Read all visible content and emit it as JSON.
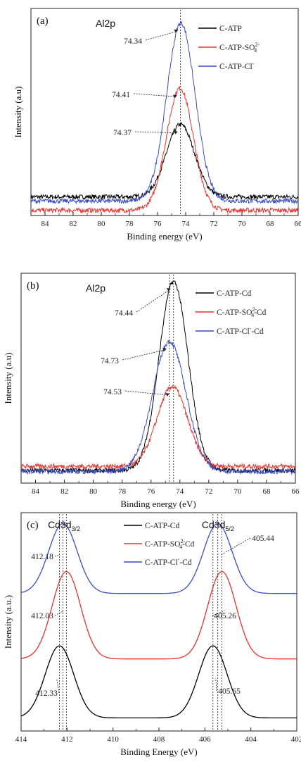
{
  "chart_data": [
    {
      "panel": "(a)",
      "type": "line",
      "title": "Al2p",
      "xlabel": "Binding energy (eV)",
      "ylabel": "Intensity (a.u)",
      "xlim": [
        85,
        66
      ],
      "x_ticks": [
        84,
        82,
        80,
        78,
        76,
        74,
        72,
        70,
        68,
        66
      ],
      "ylim": [
        0,
        1
      ],
      "grid": false,
      "legend_position": "top-right",
      "ref_lines": [
        74.37
      ],
      "series": [
        {
          "name": "C-ATP",
          "name_sup": "",
          "name_tail": "",
          "color": "#000000",
          "peak": 74.37,
          "height": 0.35,
          "width": 1.0,
          "baseline": 0.09
        },
        {
          "name": "C-ATP-SO",
          "name_sup": "2-",
          "name_tail": "",
          "name_sub": "4",
          "color": "#e8302a",
          "peak": 74.41,
          "height": 0.59,
          "width": 0.95,
          "baseline": 0.025
        },
        {
          "name": "C-ATP-Cl",
          "name_sup": "-",
          "name_tail": "",
          "color": "#3b4cc0",
          "peak": 74.34,
          "height": 0.86,
          "width": 1.0,
          "baseline": 0.07
        }
      ],
      "annotations": [
        "74.34",
        "74.41",
        "74.37"
      ]
    },
    {
      "panel": "(b)",
      "type": "line",
      "title": "Al2p",
      "xlabel": "Binding energy (eV)",
      "ylabel": "Intensity (a.u)",
      "xlim": [
        85,
        66
      ],
      "x_ticks": [
        84,
        82,
        80,
        78,
        76,
        74,
        72,
        70,
        68,
        66
      ],
      "ylim": [
        0,
        1
      ],
      "grid": false,
      "legend_position": "top-right",
      "ref_lines": [
        74.73,
        74.44
      ],
      "series": [
        {
          "name": "C-ATP",
          "name_sup": "",
          "name_tail": "-Cd",
          "color": "#000000",
          "peak": 74.44,
          "height": 0.9,
          "width": 1.0,
          "baseline": 0.06
        },
        {
          "name": "C-ATP-SO",
          "name_sup": "2-",
          "name_tail": "-Cd",
          "name_sub": "4",
          "color": "#e8302a",
          "peak": 74.53,
          "height": 0.38,
          "width": 1.05,
          "baseline": 0.08
        },
        {
          "name": "C-ATP-Cl",
          "name_sup": "-",
          "name_tail": "-Cd",
          "color": "#3b4cc0",
          "peak": 74.73,
          "height": 0.62,
          "width": 1.15,
          "baseline": 0.055
        }
      ],
      "annotations": [
        "74.44",
        "74.73",
        "74.53"
      ]
    },
    {
      "panel": "(c)",
      "type": "line",
      "xlabel": "Binding Energy (eV)",
      "ylabel": "Intensity (a.u.)",
      "xlim": [
        414,
        402
      ],
      "x_ticks": [
        414,
        412,
        410,
        408,
        406,
        404,
        402
      ],
      "ylim": [
        0,
        1
      ],
      "grid": false,
      "legend_position": "top-center",
      "peak_titles": [
        {
          "main": "Cd3d",
          "sub": "3/2",
          "x": 412.1
        },
        {
          "main": "Cd3d",
          "sub": "5/2",
          "x": 405.4
        }
      ],
      "ref_lines": [
        412.18,
        412.03,
        412.33,
        405.44,
        405.26,
        405.65
      ],
      "series": [
        {
          "name": "C-ATP",
          "name_sup": "",
          "name_tail": "-Cd",
          "color": "#000000",
          "peak1": 412.33,
          "peak2": 405.65,
          "height": 0.33,
          "baseline": 0.06
        },
        {
          "name": "C-ATP-SO",
          "name_sup": "2-",
          "name_tail": "-Cd",
          "name_sub": "4",
          "color": "#e8302a",
          "peak1": 412.03,
          "peak2": 405.26,
          "height": 0.4,
          "baseline": 0.33
        },
        {
          "name": "C-ATP-Cl",
          "name_sup": "-",
          "name_tail": "-Cd",
          "color": "#3b4cc0",
          "peak1": 412.18,
          "peak2": 405.44,
          "height": 0.32,
          "baseline": 0.63
        }
      ],
      "annotations": [
        "412.18",
        "412.03",
        "412.33",
        "405.44",
        "405.26",
        "405.65"
      ]
    }
  ]
}
